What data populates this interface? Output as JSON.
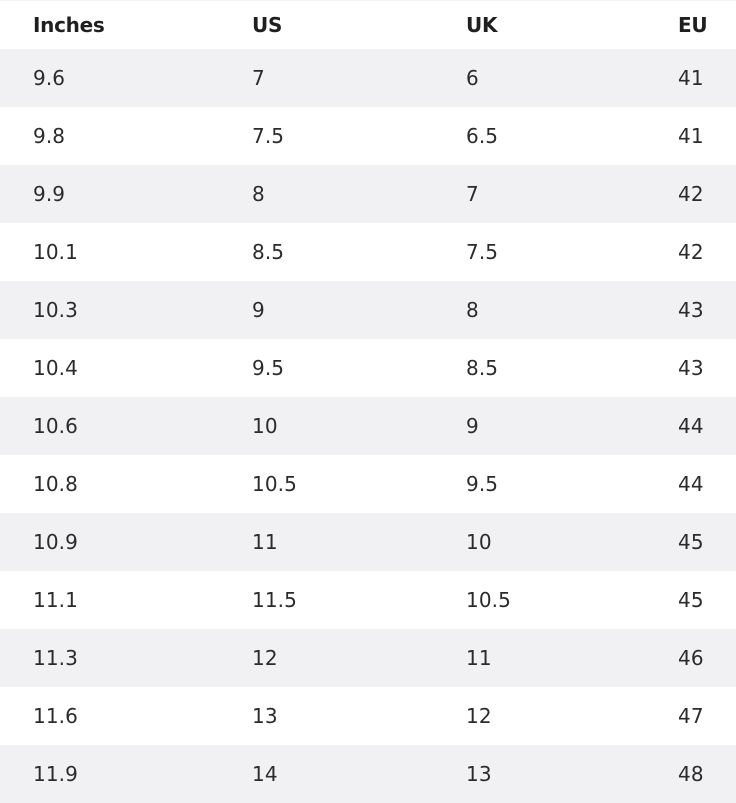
{
  "table": {
    "headers": [
      "Inches",
      "US",
      "UK",
      "EU"
    ],
    "rows": [
      [
        "9.6",
        "7",
        "6",
        "41"
      ],
      [
        "9.8",
        "7.5",
        "6.5",
        "41"
      ],
      [
        "9.9",
        "8",
        "7",
        "42"
      ],
      [
        "10.1",
        "8.5",
        "7.5",
        "42"
      ],
      [
        "10.3",
        "9",
        "8",
        "43"
      ],
      [
        "10.4",
        "9.5",
        "8.5",
        "43"
      ],
      [
        "10.6",
        "10",
        "9",
        "44"
      ],
      [
        "10.8",
        "10.5",
        "9.5",
        "44"
      ],
      [
        "10.9",
        "11",
        "10",
        "45"
      ],
      [
        "11.1",
        "11.5",
        "10.5",
        "45"
      ],
      [
        "11.3",
        "12",
        "11",
        "46"
      ],
      [
        "11.6",
        "13",
        "12",
        "47"
      ],
      [
        "11.9",
        "14",
        "13",
        "48"
      ]
    ]
  },
  "colors": {
    "text": "#2b2b2b",
    "header_text": "#1f1f1f",
    "row_shaded": "#f1f1f4",
    "row_plain": "#ffffff"
  }
}
